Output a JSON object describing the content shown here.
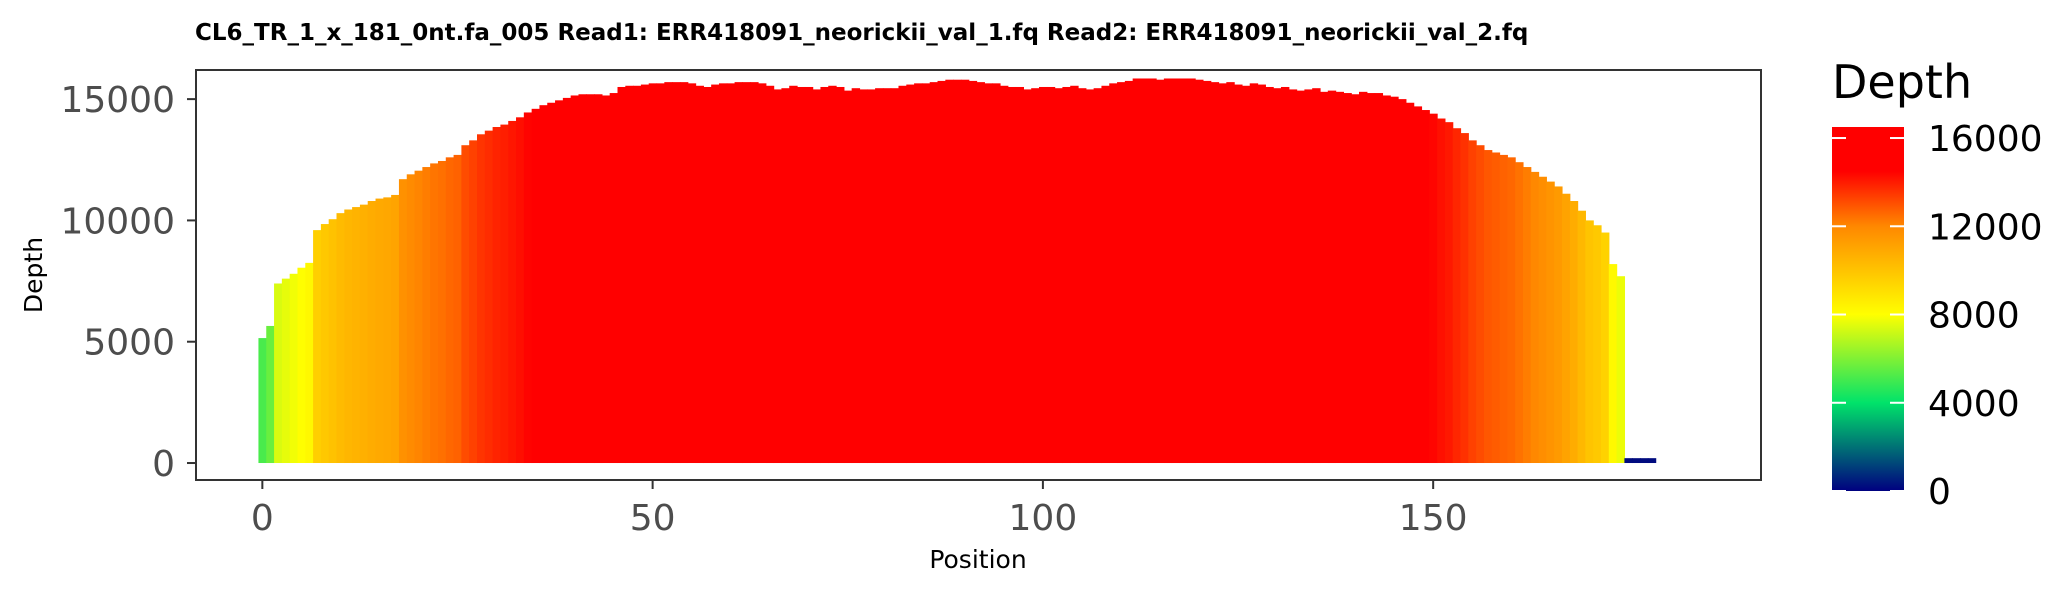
{
  "chart_data": {
    "type": "bar",
    "title": "CL6_TR_1_x_181_0nt.fa_005   Read1: ERR418091_neorickii_val_1.fq   Read2: ERR418091_neorickii_val_2.fq",
    "xlabel": "Position",
    "ylabel": "Depth",
    "xlim": [
      -8.5,
      192
    ],
    "ylim": [
      -700,
      16200
    ],
    "x_ticks": [
      0,
      50,
      100,
      150
    ],
    "y_ticks": [
      0,
      5000,
      10000,
      15000
    ],
    "grid": false,
    "positions_start": 0,
    "depth": [
      5150,
      5650,
      7400,
      7600,
      7800,
      8050,
      8250,
      9600,
      9850,
      10050,
      10300,
      10450,
      10550,
      10650,
      10800,
      10900,
      10950,
      11050,
      11700,
      11900,
      12050,
      12200,
      12350,
      12450,
      12600,
      12700,
      13100,
      13300,
      13550,
      13700,
      13850,
      13950,
      14100,
      14250,
      14450,
      14600,
      14750,
      14850,
      14950,
      15050,
      15150,
      15200,
      15200,
      15200,
      15150,
      15250,
      15500,
      15550,
      15550,
      15600,
      15650,
      15650,
      15700,
      15700,
      15700,
      15650,
      15550,
      15500,
      15600,
      15650,
      15650,
      15700,
      15700,
      15700,
      15650,
      15550,
      15400,
      15450,
      15550,
      15500,
      15500,
      15400,
      15500,
      15550,
      15500,
      15350,
      15450,
      15400,
      15400,
      15450,
      15450,
      15450,
      15550,
      15600,
      15650,
      15650,
      15700,
      15750,
      15800,
      15800,
      15800,
      15750,
      15700,
      15650,
      15650,
      15550,
      15500,
      15500,
      15400,
      15450,
      15500,
      15500,
      15450,
      15500,
      15550,
      15450,
      15400,
      15450,
      15550,
      15650,
      15700,
      15750,
      15850,
      15850,
      15850,
      15800,
      15850,
      15850,
      15850,
      15850,
      15800,
      15750,
      15700,
      15650,
      15700,
      15600,
      15550,
      15650,
      15600,
      15500,
      15450,
      15500,
      15400,
      15350,
      15400,
      15450,
      15300,
      15350,
      15300,
      15250,
      15200,
      15300,
      15250,
      15250,
      15150,
      15100,
      15000,
      14850,
      14700,
      14550,
      14400,
      14200,
      14050,
      13800,
      13600,
      13300,
      13100,
      12900,
      12800,
      12700,
      12600,
      12400,
      12200,
      12000,
      11800,
      11600,
      11400,
      11100,
      10800,
      10400,
      10000,
      9800,
      9500,
      8200,
      7700,
      200,
      200,
      200,
      200
    ],
    "color_scale": {
      "legend_title": "Depth",
      "min": 0,
      "max": 16500,
      "breaks": [
        0,
        4000,
        8000,
        12000,
        16000
      ],
      "stops": [
        {
          "value": 0,
          "color": "#000080"
        },
        {
          "value": 4000,
          "color": "#00e36a"
        },
        {
          "value": 8000,
          "color": "#ffff00"
        },
        {
          "value": 12000,
          "color": "#ff8800"
        },
        {
          "value": 14500,
          "color": "#ff0000"
        },
        {
          "value": 16500,
          "color": "#ff0000"
        }
      ]
    }
  }
}
